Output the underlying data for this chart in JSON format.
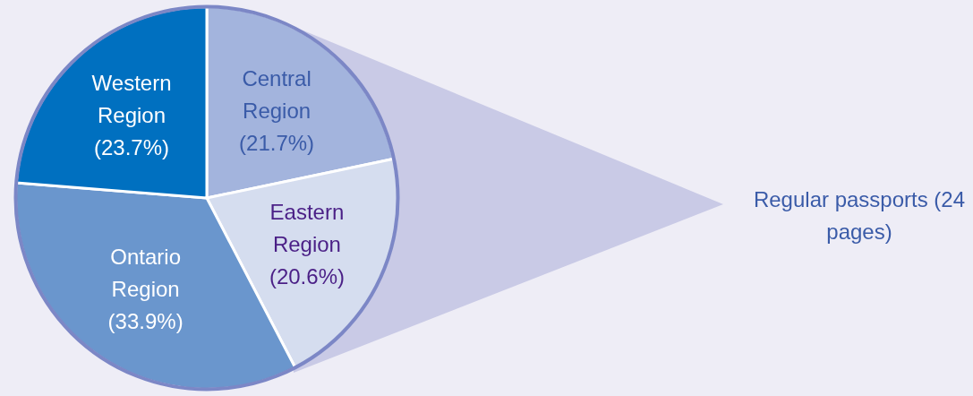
{
  "chart_data": {
    "type": "pie",
    "categories": [
      "Central Region",
      "Eastern Region",
      "Ontario Region",
      "Western Region"
    ],
    "values": [
      21.7,
      20.6,
      33.9,
      23.7
    ],
    "value_labels": [
      "(21.7%)",
      "(20.6%)",
      "(33.9%)",
      "(23.7%)"
    ],
    "colors": [
      "#a3b4dd",
      "#d5ddef",
      "#6a96cd",
      "#0070c0"
    ],
    "annotations": [
      "Regular passports (24 pages)"
    ]
  }
}
